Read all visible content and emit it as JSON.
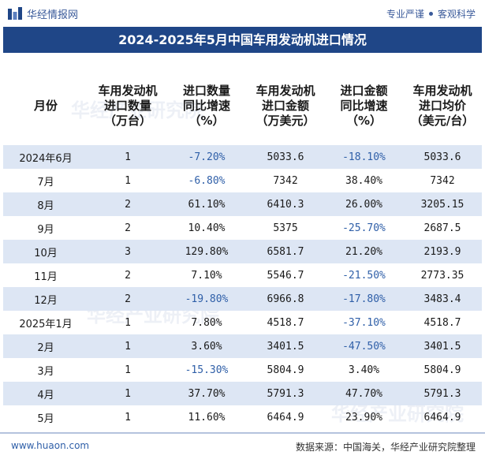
{
  "header": {
    "brand": "华经情报网",
    "slogan_left": "专业严谨",
    "slogan_right": "客观科学"
  },
  "title": "2024-2025年5月中国车用发动机进口情况",
  "table": {
    "columns": [
      "月份",
      "车用发动机\n进口数量\n（万台）",
      "进口数量\n同比增速\n（%）",
      "车用发动机\n进口金额\n（万美元）",
      "进口金额\n同比增速\n（%）",
      "车用发动机\n进口均价\n（美元/台）"
    ],
    "rows": [
      [
        "2024年6月",
        "1",
        "-7.20%",
        "5033.6",
        "-18.10%",
        "5033.6"
      ],
      [
        "7月",
        "1",
        "-6.80%",
        "7342",
        "38.40%",
        "7342"
      ],
      [
        "8月",
        "2",
        "61.10%",
        "6410.3",
        "26.00%",
        "3205.15"
      ],
      [
        "9月",
        "2",
        "10.40%",
        "5375",
        "-25.70%",
        "2687.5"
      ],
      [
        "10月",
        "3",
        "129.80%",
        "6581.7",
        "21.20%",
        "2193.9"
      ],
      [
        "11月",
        "2",
        "7.10%",
        "5546.7",
        "-21.50%",
        "2773.35"
      ],
      [
        "12月",
        "2",
        "-19.80%",
        "6966.8",
        "-17.80%",
        "3483.4"
      ],
      [
        "2025年1月",
        "1",
        "7.80%",
        "4518.7",
        "-37.10%",
        "4518.7"
      ],
      [
        "2月",
        "1",
        "3.60%",
        "3401.5",
        "-47.50%",
        "3401.5"
      ],
      [
        "3月",
        "1",
        "-15.30%",
        "5804.9",
        "3.40%",
        "5804.9"
      ],
      [
        "4月",
        "1",
        "37.70%",
        "5791.3",
        "47.70%",
        "5791.3"
      ],
      [
        "5月",
        "1",
        "11.60%",
        "6464.9",
        "23.90%",
        "6464.9"
      ]
    ]
  },
  "footer": {
    "url": "www.huaon.com",
    "source": "数据来源：中国海关，华经产业研究院整理"
  },
  "watermark": "华经产业研究院",
  "colors": {
    "title_bg": "#1f4687",
    "row_shade": "#dde6f4",
    "negative_text": "#2f5fa8"
  }
}
